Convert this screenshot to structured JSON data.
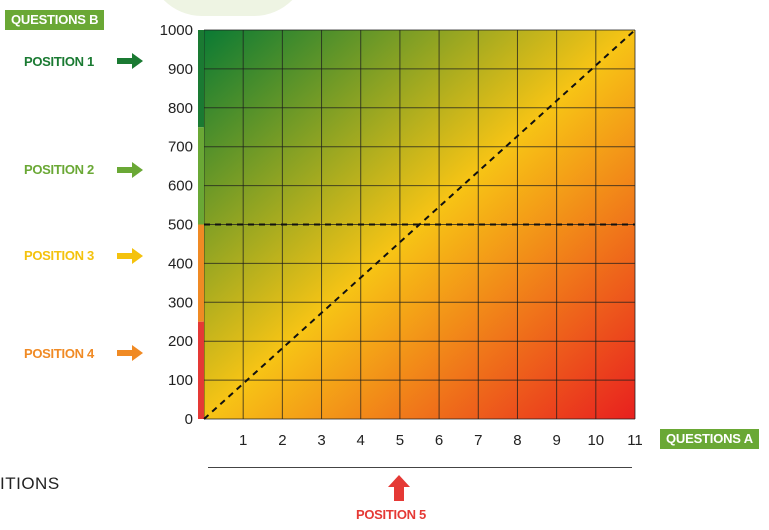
{
  "axis_badges": {
    "y": "QUESTIONS B",
    "x": "QUESTIONS A"
  },
  "positions": [
    {
      "label": "POSITION 1",
      "color": "#1a7a32"
    },
    {
      "label": "POSITION 2",
      "color": "#6aa835"
    },
    {
      "label": "POSITION 3",
      "color": "#f4c20d"
    },
    {
      "label": "POSITION 4",
      "color": "#f08a24"
    }
  ],
  "position_5": {
    "label": "POSITION 5",
    "color": "#e53935"
  },
  "footer_text": "ITIONS",
  "icons": [
    "arrow-right-icon",
    "arrow-up-icon"
  ],
  "chart_data": {
    "type": "heatmap",
    "x_ticks": [
      "1",
      "2",
      "3",
      "4",
      "5",
      "6",
      "7",
      "8",
      "9",
      "10",
      "11"
    ],
    "y_ticks": [
      "0",
      "100",
      "200",
      "300",
      "400",
      "500",
      "600",
      "700",
      "800",
      "900",
      "1000"
    ],
    "xlim": [
      0,
      11
    ],
    "ylim": [
      0,
      1000
    ],
    "grid": true,
    "gradient": [
      "#0a7a34",
      "#f7c415",
      "#e8201f"
    ],
    "reference_lines": [
      {
        "kind": "diagonal",
        "from": [
          0,
          0
        ],
        "to": [
          11,
          1000
        ],
        "style": "dashed"
      },
      {
        "kind": "horizontal",
        "y": 500,
        "style": "dashed"
      }
    ],
    "y_bands": [
      {
        "from": 750,
        "to": 1000,
        "color": "#1a7a32"
      },
      {
        "from": 500,
        "to": 750,
        "color": "#6aa835"
      },
      {
        "from": 250,
        "to": 500,
        "color": "#f08a24"
      },
      {
        "from": 0,
        "to": 250,
        "color": "#e53935"
      }
    ]
  }
}
